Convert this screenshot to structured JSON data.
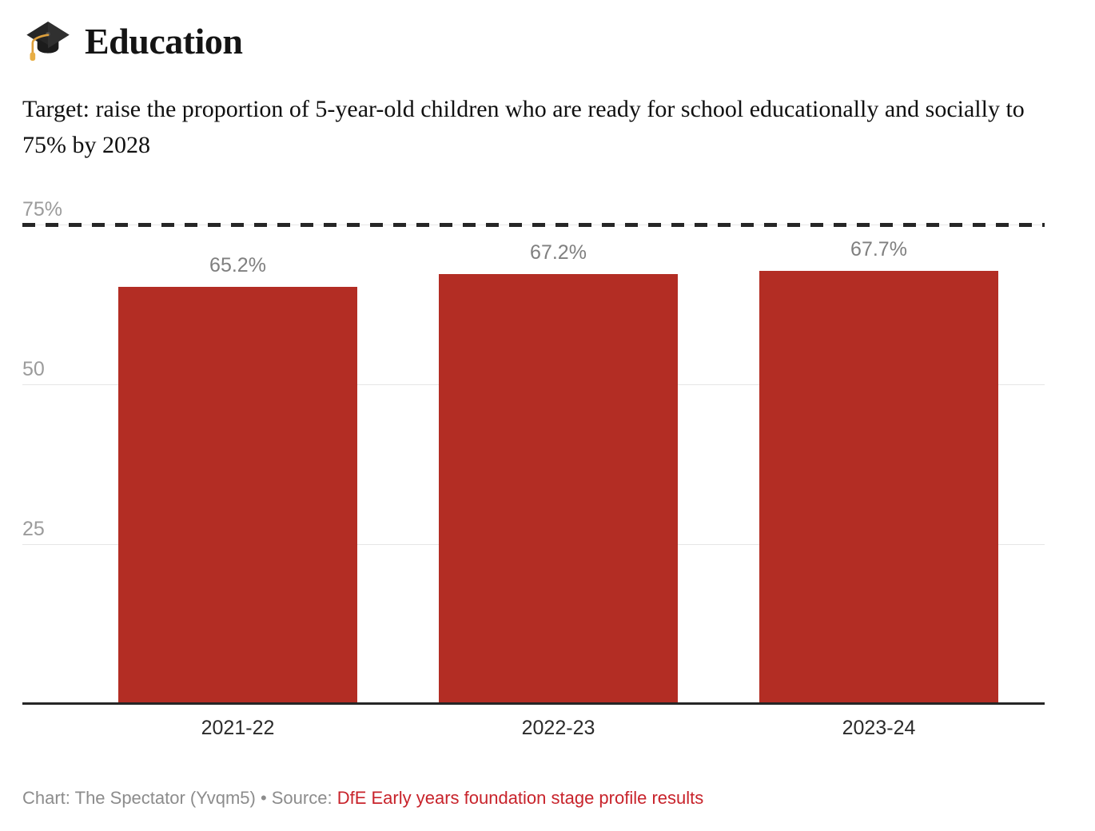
{
  "header": {
    "icon": "graduation-cap-icon",
    "title": "Education",
    "subtitle": "Target: raise the proportion of 5-year-old children who are ready for school educationally and socially to 75% by 2028"
  },
  "chart_data": {
    "type": "bar",
    "title": "Education",
    "subtitle": "Target: raise the proportion of 5-year-old children who are ready for school educationally and socially to 75% by 2028",
    "categories": [
      "2021-22",
      "2022-23",
      "2023-24"
    ],
    "values": [
      65.2,
      67.2,
      67.7
    ],
    "value_labels": [
      "65.2%",
      "67.2%",
      "67.7%"
    ],
    "xlabel": "",
    "ylabel": "",
    "ylim": [
      0,
      75
    ],
    "yticks": [
      {
        "value": 25,
        "label": "25",
        "style": "solid"
      },
      {
        "value": 50,
        "label": "50",
        "style": "solid"
      },
      {
        "value": 75,
        "label": "75%",
        "style": "dashed-target"
      }
    ],
    "target_line": {
      "value": 75,
      "meaning": "75% target by 2028"
    },
    "grid": "horizontal",
    "legend": "none",
    "bar_color": "#b32d24",
    "target_line_color": "#262626",
    "axis_color": "#262626"
  },
  "footer": {
    "credit_prefix": "Chart: The Spectator (Yvqm5) • Source: ",
    "source_link": "DfE Early years foundation stage profile results",
    "link_color": "#c8232b"
  }
}
